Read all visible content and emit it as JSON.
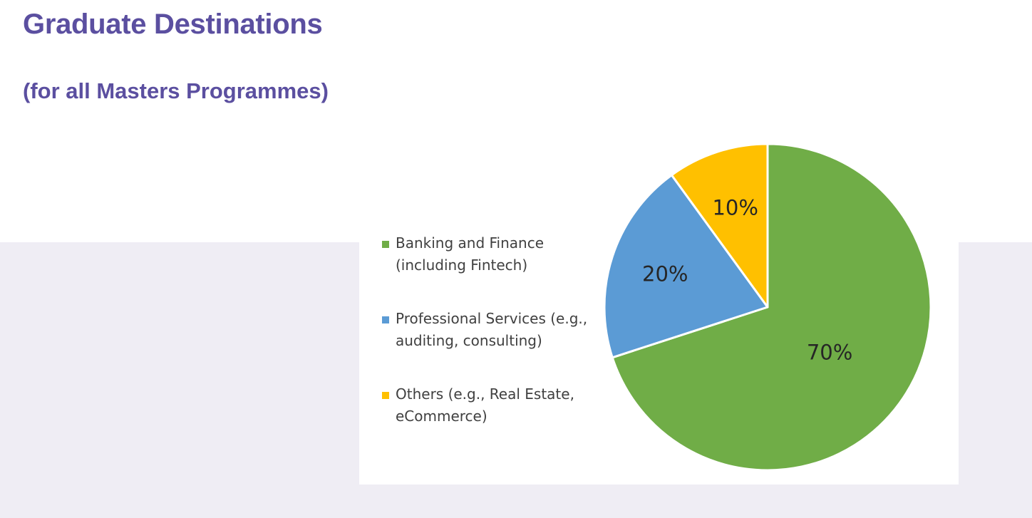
{
  "page": {
    "title": "Graduate Destinations",
    "subtitle": "(for all Masters Programmes)",
    "quote_glyph": "”"
  },
  "colors": {
    "heading": "#5b4fa0",
    "band": "#efedf4",
    "banking": "#70ad47",
    "professional": "#5b9bd5",
    "others": "#ffc000"
  },
  "chart_data": {
    "type": "pie",
    "title": "",
    "legend_position": "left",
    "start_angle_deg": 0,
    "direction": "clockwise",
    "categories": [
      "Banking and Finance\n(including Fintech)",
      "Professional Services (e.g.,\nauditing, consulting)",
      "Others (e.g., Real Estate,\neCommerce)"
    ],
    "values": [
      70,
      20,
      10
    ],
    "data_labels": [
      "70%",
      "20%",
      "10%"
    ],
    "colors": [
      "#70ad47",
      "#5b9bd5",
      "#ffc000"
    ]
  }
}
